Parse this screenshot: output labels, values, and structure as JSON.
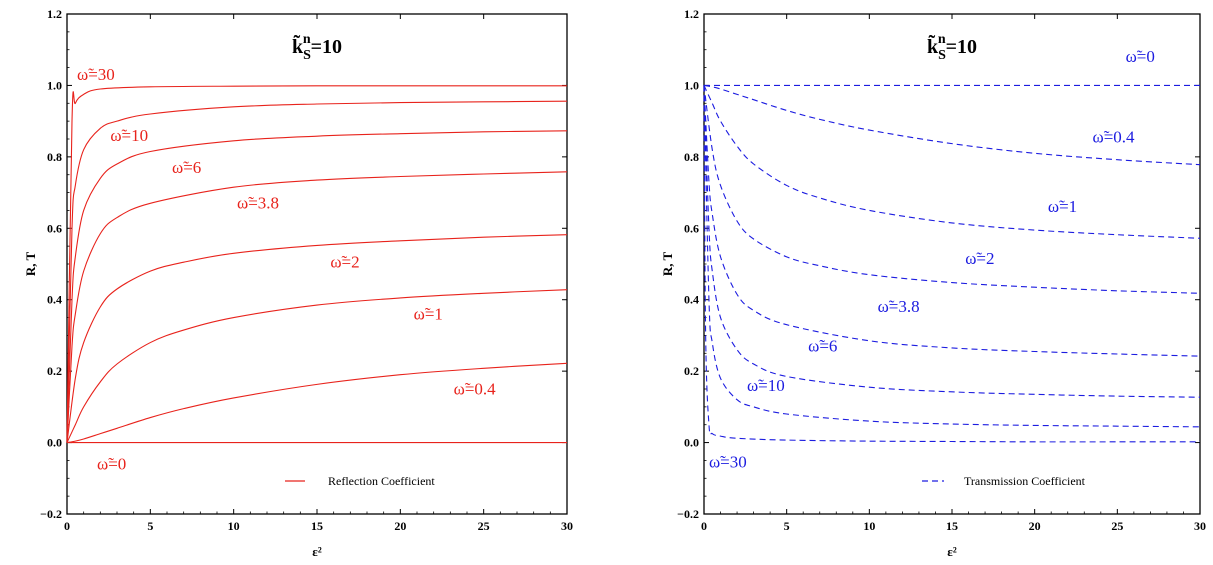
{
  "chart_data": [
    {
      "type": "line",
      "title": "k̃ S n=10",
      "title_parts": {
        "base": "k̃",
        "sub": "S",
        "sup": "n",
        "value": "=10"
      },
      "xlabel": "ε²",
      "ylabel": "R, T",
      "xlim": [
        0,
        30
      ],
      "ylim": [
        -0.2,
        1.2
      ],
      "xticks": [
        0,
        5,
        10,
        15,
        20,
        25,
        30
      ],
      "yticks": [
        -0.2,
        0.0,
        0.2,
        0.4,
        0.6,
        0.8,
        1.0,
        1.2
      ],
      "ytick_labels": [
        "−0.2",
        "0.0",
        "0.2",
        "0.4",
        "0.6",
        "0.8",
        "1.0",
        "1.2"
      ],
      "color": "#e8231c",
      "dash": "",
      "legend": {
        "label": "Reflection Coefficient",
        "position": "bottom-right"
      },
      "series": [
        {
          "name": "ω̃=30",
          "label": "ω̃=30",
          "x": [
            0,
            0.3,
            0.5,
            1,
            2,
            5,
            10,
            15,
            20,
            25,
            30
          ],
          "y": [
            0,
            0.9,
            0.95,
            0.975,
            0.99,
            0.996,
            0.998,
            0.999,
            0.999,
            0.999,
            0.999
          ]
        },
        {
          "name": "ω̃=10",
          "label": "ω̃=10",
          "x": [
            0,
            0.3,
            0.5,
            1,
            2,
            3,
            5,
            10,
            15,
            20,
            25,
            30
          ],
          "y": [
            0,
            0.6,
            0.72,
            0.82,
            0.88,
            0.9,
            0.92,
            0.94,
            0.948,
            0.952,
            0.954,
            0.956
          ]
        },
        {
          "name": "ω̃=6",
          "label": "ω̃=6",
          "x": [
            0,
            0.3,
            0.5,
            1,
            2,
            3,
            5,
            10,
            15,
            20,
            25,
            30
          ],
          "y": [
            0,
            0.4,
            0.52,
            0.65,
            0.74,
            0.78,
            0.815,
            0.845,
            0.858,
            0.865,
            0.87,
            0.873
          ]
        },
        {
          "name": "ω̃=3.8",
          "label": "ω̃=3.8",
          "x": [
            0,
            0.3,
            0.5,
            1,
            2,
            3,
            5,
            10,
            15,
            20,
            25,
            30
          ],
          "y": [
            0,
            0.27,
            0.36,
            0.48,
            0.585,
            0.63,
            0.67,
            0.715,
            0.735,
            0.745,
            0.752,
            0.758
          ]
        },
        {
          "name": "ω̃=2",
          "label": "ω̃=2",
          "x": [
            0,
            0.5,
            1,
            2,
            3,
            5,
            7,
            10,
            15,
            20,
            25,
            30
          ],
          "y": [
            0,
            0.18,
            0.28,
            0.38,
            0.43,
            0.48,
            0.505,
            0.53,
            0.552,
            0.565,
            0.575,
            0.582
          ]
        },
        {
          "name": "ω̃=1",
          "label": "ω̃=1",
          "x": [
            0,
            0.5,
            1,
            2,
            3,
            5,
            7,
            10,
            15,
            20,
            25,
            30
          ],
          "y": [
            0,
            0.05,
            0.1,
            0.17,
            0.22,
            0.28,
            0.315,
            0.35,
            0.385,
            0.405,
            0.418,
            0.428
          ]
        },
        {
          "name": "ω̃=0.4",
          "label": "ω̃=0.4",
          "x": [
            0,
            0.5,
            1,
            2,
            3,
            5,
            7,
            10,
            15,
            20,
            25,
            30
          ],
          "y": [
            0,
            0.004,
            0.01,
            0.025,
            0.04,
            0.07,
            0.095,
            0.125,
            0.163,
            0.19,
            0.208,
            0.222
          ]
        },
        {
          "name": "ω̃=0",
          "label": "ω̃=0",
          "x": [
            0,
            30
          ],
          "y": [
            0,
            0
          ]
        }
      ],
      "labels": [
        {
          "text": "ω̃=30",
          "x": 0.6,
          "y": 1.015
        },
        {
          "text": "ω̃=10",
          "x": 2.6,
          "y": 0.845
        },
        {
          "text": "ω̃=6",
          "x": 6.3,
          "y": 0.755
        },
        {
          "text": "ω̃=3.8",
          "x": 10.2,
          "y": 0.655
        },
        {
          "text": "ω̃=2",
          "x": 15.8,
          "y": 0.49
        },
        {
          "text": "ω̃=1",
          "x": 20.8,
          "y": 0.345
        },
        {
          "text": "ω̃=0.4",
          "x": 23.2,
          "y": 0.135
        },
        {
          "text": "ω̃=0",
          "x": 1.8,
          "y": -0.075
        }
      ]
    },
    {
      "type": "line",
      "title": "k̃ S n=10",
      "title_parts": {
        "base": "k̃",
        "sub": "S",
        "sup": "n",
        "value": "=10"
      },
      "xlabel": "ε²",
      "ylabel": "R, T",
      "xlim": [
        0,
        30
      ],
      "ylim": [
        -0.2,
        1.2
      ],
      "xticks": [
        0,
        5,
        10,
        15,
        20,
        25,
        30
      ],
      "yticks": [
        -0.2,
        0.0,
        0.2,
        0.4,
        0.6,
        0.8,
        1.0,
        1.2
      ],
      "ytick_labels": [
        "−0.2",
        "0.0",
        "0.2",
        "0.4",
        "0.6",
        "0.8",
        "1.0",
        "1.2"
      ],
      "color": "#1c1ce0",
      "dash": "6,4",
      "legend": {
        "label": "Transmission Coefficient",
        "position": "bottom-right"
      },
      "series": [
        {
          "name": "ω̃=0",
          "label": "ω̃=0",
          "x": [
            0,
            30
          ],
          "y": [
            1,
            1
          ]
        },
        {
          "name": "ω̃=0.4",
          "label": "ω̃=0.4",
          "x": [
            0,
            0.5,
            1,
            2,
            3,
            5,
            7,
            10,
            15,
            20,
            25,
            30
          ],
          "y": [
            1,
            0.996,
            0.99,
            0.975,
            0.96,
            0.93,
            0.905,
            0.875,
            0.837,
            0.81,
            0.792,
            0.778
          ]
        },
        {
          "name": "ω̃=1",
          "label": "ω̃=1",
          "x": [
            0,
            0.5,
            1,
            2,
            3,
            5,
            7,
            10,
            15,
            20,
            25,
            30
          ],
          "y": [
            1,
            0.95,
            0.9,
            0.83,
            0.78,
            0.72,
            0.685,
            0.65,
            0.615,
            0.595,
            0.582,
            0.572
          ]
        },
        {
          "name": "ω̃=2",
          "label": "ω̃=2",
          "x": [
            0,
            0.5,
            1,
            2,
            3,
            5,
            7,
            10,
            15,
            20,
            25,
            30
          ],
          "y": [
            1,
            0.82,
            0.72,
            0.62,
            0.57,
            0.52,
            0.495,
            0.47,
            0.448,
            0.435,
            0.425,
            0.418
          ]
        },
        {
          "name": "ω̃=3.8",
          "label": "ω̃=3.8",
          "x": [
            0,
            0.3,
            0.5,
            1,
            2,
            3,
            5,
            10,
            15,
            20,
            25,
            30
          ],
          "y": [
            1,
            0.73,
            0.64,
            0.52,
            0.415,
            0.37,
            0.33,
            0.285,
            0.265,
            0.255,
            0.248,
            0.242
          ]
        },
        {
          "name": "ω̃=6",
          "label": "ω̃=6",
          "x": [
            0,
            0.3,
            0.5,
            1,
            2,
            3,
            5,
            10,
            15,
            20,
            25,
            30
          ],
          "y": [
            1,
            0.6,
            0.48,
            0.35,
            0.26,
            0.22,
            0.185,
            0.155,
            0.142,
            0.135,
            0.13,
            0.127
          ]
        },
        {
          "name": "ω̃=10",
          "label": "ω̃=10",
          "x": [
            0,
            0.3,
            0.5,
            1,
            2,
            3,
            5,
            10,
            15,
            20,
            25,
            30
          ],
          "y": [
            1,
            0.4,
            0.28,
            0.18,
            0.12,
            0.1,
            0.08,
            0.06,
            0.052,
            0.048,
            0.046,
            0.044
          ]
        },
        {
          "name": "ω̃=30",
          "label": "ω̃=30",
          "x": [
            0,
            0.1,
            0.3,
            0.5,
            1,
            2,
            5,
            10,
            15,
            20,
            25,
            30
          ],
          "y": [
            1,
            0.3,
            0.05,
            0.025,
            0.018,
            0.012,
            0.007,
            0.004,
            0.003,
            0.002,
            0.002,
            0.002
          ]
        }
      ],
      "labels": [
        {
          "text": "ω̃=0",
          "x": 25.5,
          "y": 1.065
        },
        {
          "text": "ω̃=0.4",
          "x": 23.5,
          "y": 0.84
        },
        {
          "text": "ω̃=1",
          "x": 20.8,
          "y": 0.645
        },
        {
          "text": "ω̃=2",
          "x": 15.8,
          "y": 0.5
        },
        {
          "text": "ω̃=3.8",
          "x": 10.5,
          "y": 0.365
        },
        {
          "text": "ω̃=6",
          "x": 6.3,
          "y": 0.255
        },
        {
          "text": "ω̃=10",
          "x": 2.6,
          "y": 0.145
        },
        {
          "text": "ω̃=30",
          "x": 0.3,
          "y": -0.07
        }
      ]
    }
  ]
}
